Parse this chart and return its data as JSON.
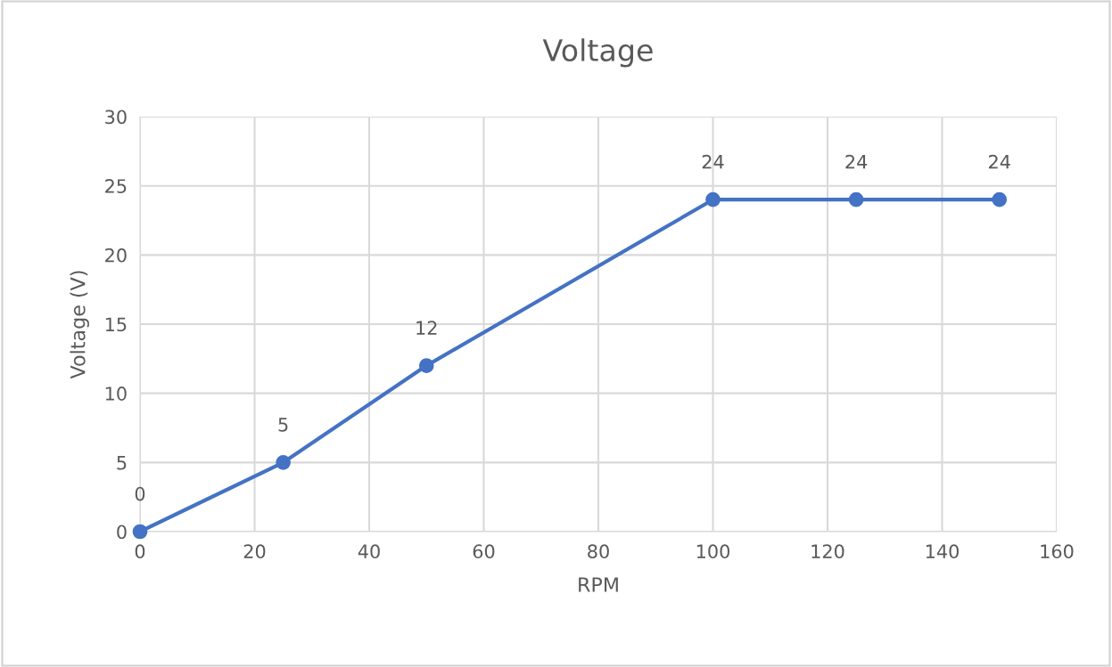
{
  "chart_data": {
    "type": "line",
    "title": "Voltage",
    "xlabel": "RPM",
    "ylabel": "Voltage (V)",
    "x": [
      0,
      25,
      50,
      100,
      125,
      150
    ],
    "series": [
      {
        "color": "#4472c4",
        "values": [
          0,
          5,
          12,
          24,
          24,
          24
        ]
      }
    ],
    "xlim": [
      0,
      160
    ],
    "xticks": [
      0,
      20,
      40,
      60,
      80,
      100,
      120,
      140,
      160
    ],
    "ylim": [
      0,
      30
    ],
    "yticks": [
      0,
      5,
      10,
      15,
      20,
      25,
      30
    ],
    "grid": true,
    "marker": "circle",
    "line_style": "solid",
    "data_labels": true
  }
}
